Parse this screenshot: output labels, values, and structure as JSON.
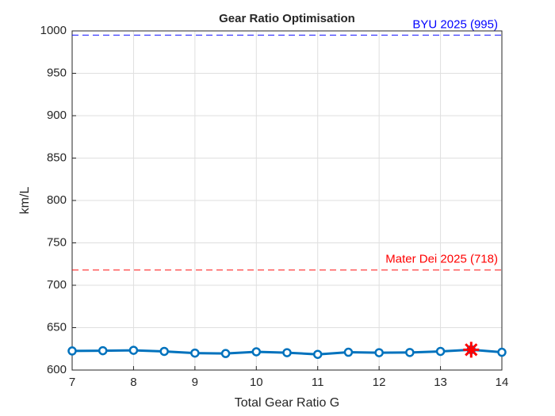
{
  "chart_data": {
    "type": "line",
    "title": "Gear Ratio Optimisation",
    "xlabel": "Total Gear Ratio G",
    "ylabel": "km/L",
    "xlim": [
      7,
      14
    ],
    "xticks": [
      7,
      8,
      9,
      10,
      11,
      12,
      13,
      14
    ],
    "ylim": [
      600,
      1000
    ],
    "yticks": [
      600,
      650,
      700,
      750,
      800,
      850,
      900,
      950,
      1000
    ],
    "grid": true,
    "series": [
      {
        "color": "#0072bd",
        "marker": "circle",
        "x": [
          7,
          7.5,
          8,
          8.5,
          9,
          9.5,
          10,
          10.5,
          11,
          11.5,
          12,
          12.5,
          13,
          13.5,
          14
        ],
        "values": [
          622.5,
          622.8,
          623.3,
          622,
          620,
          619.5,
          621.5,
          620.5,
          618.5,
          621,
          620.5,
          620.7,
          622,
          624,
          621
        ]
      },
      {
        "color": "#ff0000",
        "marker": "star",
        "x": [
          13.5
        ],
        "values": [
          624
        ]
      }
    ],
    "reference_lines": [
      {
        "value": 995,
        "label": "BYU 2025 (995)",
        "color": "#0000ff"
      },
      {
        "value": 718,
        "label": "Mater Dei 2025 (718)",
        "color": "#ff0000"
      }
    ]
  }
}
